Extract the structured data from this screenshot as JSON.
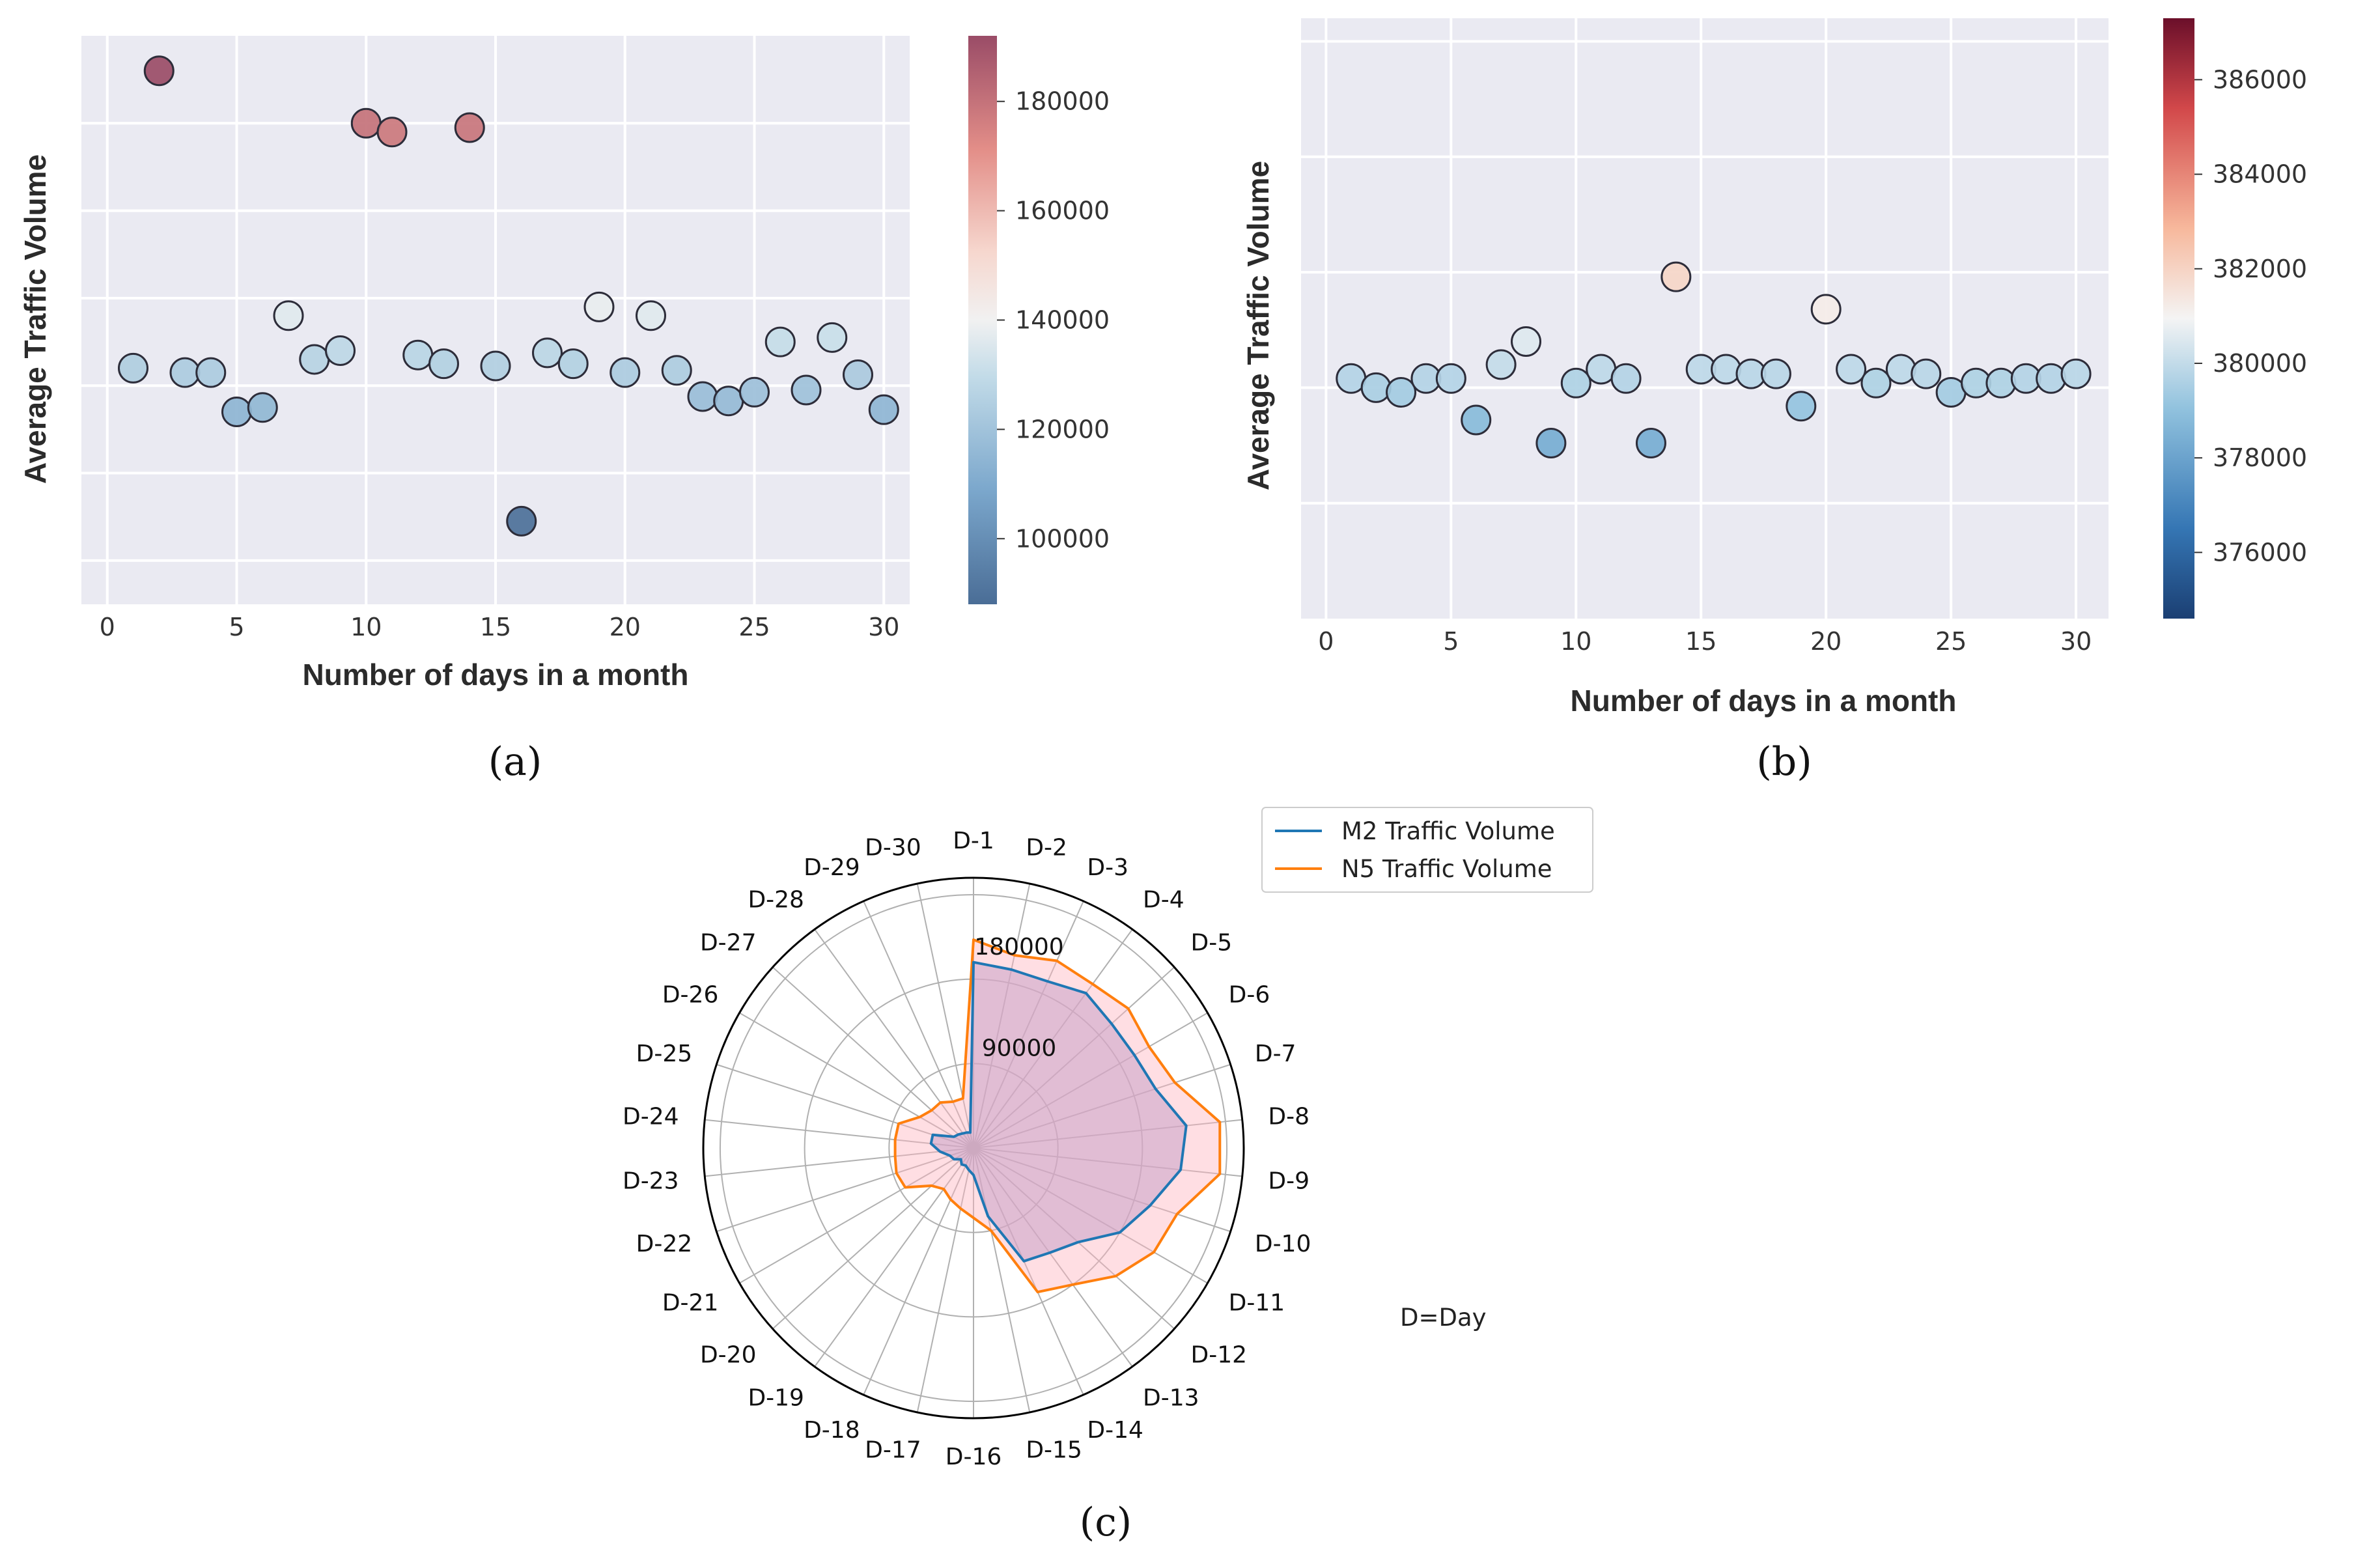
{
  "chart_data": [
    {
      "id": "a",
      "type": "scatter",
      "panel_label": "(a)",
      "xlabel": "Number of days in a month",
      "ylabel": "Average Traffic Volume",
      "xlim": [
        -1,
        31
      ],
      "ylim": [
        70000,
        200000
      ],
      "x_ticks": [
        0,
        5,
        10,
        15,
        20,
        25,
        30
      ],
      "y_gridlines": [
        80000,
        100000,
        120000,
        140000,
        160000,
        180000
      ],
      "colorbar": {
        "min": 88000,
        "max": 192000,
        "ticks": [
          100000,
          120000,
          140000,
          160000,
          180000
        ],
        "tick_labels": [
          "100000",
          "120000",
          "140000",
          "160000",
          "180000"
        ]
      },
      "x": [
        1,
        2,
        3,
        4,
        5,
        6,
        7,
        8,
        9,
        10,
        11,
        12,
        13,
        14,
        15,
        16,
        17,
        18,
        19,
        20,
        21,
        22,
        23,
        24,
        25,
        26,
        27,
        28,
        29,
        30
      ],
      "y": [
        124000,
        192000,
        123000,
        123000,
        114000,
        115000,
        136000,
        126000,
        128000,
        180000,
        178000,
        127000,
        125000,
        179000,
        124500,
        89000,
        127500,
        125000,
        138000,
        123000,
        136000,
        123500,
        117500,
        116500,
        118500,
        130000,
        119000,
        131000,
        122500,
        114500
      ]
    },
    {
      "id": "b",
      "type": "scatter",
      "panel_label": "(b)",
      "xlabel": "Number of days in a month",
      "ylabel": "Average Traffic Volume",
      "xlim": [
        -1,
        31.3
      ],
      "ylim": [
        374500,
        387500
      ],
      "x_ticks": [
        0,
        5,
        10,
        15,
        20,
        25,
        30
      ],
      "y_gridlines": [
        377000,
        379500,
        382000,
        384500,
        387000
      ],
      "colorbar": {
        "min": 374600,
        "max": 387300,
        "ticks": [
          376000,
          378000,
          380000,
          382000,
          384000,
          386000
        ],
        "tick_labels": [
          "376000",
          "378000",
          "380000",
          "382000",
          "384000",
          "386000"
        ]
      },
      "x": [
        1,
        2,
        3,
        4,
        5,
        6,
        7,
        8,
        9,
        10,
        11,
        12,
        13,
        14,
        15,
        16,
        17,
        18,
        19,
        20,
        21,
        22,
        23,
        24,
        25,
        26,
        27,
        28,
        29,
        30
      ],
      "y": [
        379700,
        379500,
        379400,
        379700,
        379700,
        378800,
        380000,
        380500,
        378300,
        379600,
        379900,
        379700,
        378300,
        381900,
        379900,
        379900,
        379800,
        379800,
        379100,
        381200,
        379900,
        379600,
        379900,
        379800,
        379400,
        379600,
        379600,
        379700,
        379700,
        379800
      ]
    },
    {
      "id": "c",
      "type": "radar",
      "panel_label": "(c)",
      "categories": [
        "D-1",
        "D-2",
        "D-3",
        "D-4",
        "D-5",
        "D-6",
        "D-7",
        "D-8",
        "D-9",
        "D-10",
        "D-11",
        "D-12",
        "D-13",
        "D-14",
        "D-15",
        "D-16",
        "D-17",
        "D-18",
        "D-19",
        "D-20",
        "D-21",
        "D-22",
        "D-23",
        "D-24",
        "D-25",
        "D-26",
        "D-27",
        "D-28",
        "D-29",
        "D-30"
      ],
      "r_max": 240000,
      "r_ticks": [
        90000,
        180000
      ],
      "r_tick_labels": [
        "90000",
        "180000"
      ],
      "series": [
        {
          "name": "M2 Traffic Volume",
          "color": "#1f77b4",
          "fill": "#c8a2c8",
          "values": [
            165000,
            162000,
            162000,
            170000,
            165000,
            165000,
            170000,
            190000,
            185000,
            165000,
            150000,
            125000,
            115000,
            110000,
            62000,
            24000,
            20000,
            17000,
            18000,
            15000,
            20000,
            22000,
            30000,
            38000,
            38000,
            20000,
            18000,
            16000,
            15000,
            14000
          ]
        },
        {
          "name": "N5 Traffic Volume",
          "color": "#ff7f0e",
          "fill": "#ffb6c1",
          "values": [
            185000,
            175000,
            182000,
            180000,
            185000,
            180000,
            188000,
            220000,
            220000,
            190000,
            185000,
            170000,
            150000,
            140000,
            75000,
            62000,
            55000,
            50000,
            45000,
            50000,
            70000,
            72000,
            70000,
            70000,
            70000,
            55000,
            50000,
            50000,
            45000,
            45000
          ]
        }
      ],
      "annotation": "D=Day"
    }
  ]
}
